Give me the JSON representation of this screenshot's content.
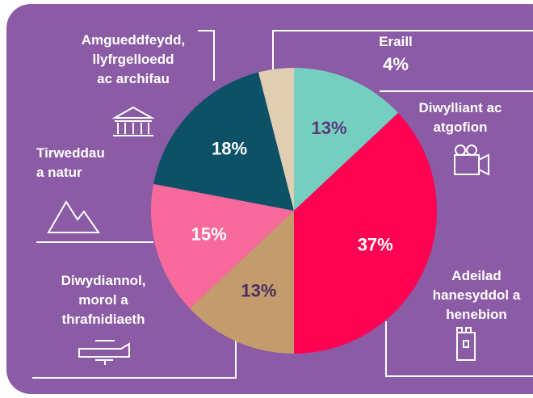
{
  "chart_data": {
    "type": "pie",
    "categories": [
      "Diwylliant ac\natgofion",
      "Adeilad\nhanesyddol a\nhenebion",
      "Diwydiannol,\nmorol a\nthrafnidiaeth",
      "Tirweddau\na natur",
      "Amgueddfeydd,\nllyfrgelloedd\nac archifau",
      "Eraill"
    ],
    "values": [
      13,
      37,
      13,
      15,
      18,
      4
    ],
    "value_labels": [
      "13%",
      "37%",
      "13%",
      "15%",
      "18%",
      "4%"
    ],
    "colors": [
      "#74cfc1",
      "#ff0353",
      "#c39b6d",
      "#f86a9c",
      "#0c5166",
      "#e0ceb3"
    ],
    "label_colors": [
      "#5b3a7a",
      "#ffffff",
      "#4a2f5e",
      "#ffffff",
      "#ffffff",
      "#ffffff"
    ]
  }
}
